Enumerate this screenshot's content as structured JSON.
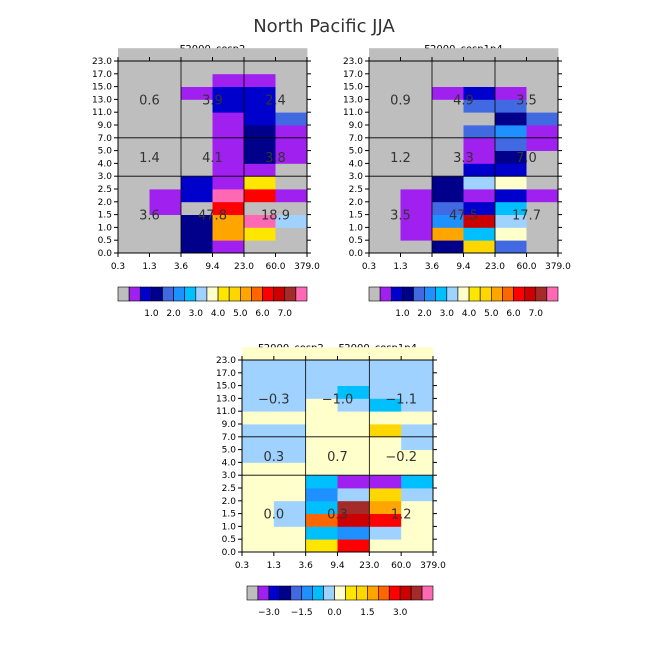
{
  "title": "North Pacific JJA",
  "palette_main": [
    "#bebebe",
    "#a020f0",
    "#0000cd",
    "#00008b",
    "#4169e1",
    "#1e90ff",
    "#00bfff",
    "#a0d2ff",
    "#ffffcc",
    "#ffe600",
    "#ffd700",
    "#ffa500",
    "#ff6600",
    "#ff0000",
    "#cc0000",
    "#a52a2a",
    "#ff69b4"
  ],
  "palette_diff": [
    "#bebebe",
    "#a020f0",
    "#0000cd",
    "#00008b",
    "#4169e1",
    "#1e90ff",
    "#00bfff",
    "#a0d2ff",
    "#ffffcc",
    "#ffe600",
    "#ffd700",
    "#ffa500",
    "#ff6600",
    "#ff0000",
    "#cc0000",
    "#a52a2a",
    "#ff69b4"
  ],
  "chart_data": [
    {
      "type": "heatmap",
      "title": "F2000_cosp2",
      "x_tick_labels": [
        "0.3",
        "1.3",
        "3.6",
        "9.4",
        "23.0",
        "60.0",
        "379.0"
      ],
      "y_tick_labels": [
        "0.0",
        "0.5",
        "1.0",
        "1.5",
        "2.0",
        "2.5",
        "3.0",
        "4.0",
        "5.0",
        "7.0",
        "9.0",
        "11.0",
        "13.0",
        "15.0",
        "17.0",
        "23.0"
      ],
      "rows": [
        [
          0,
          0,
          3,
          1,
          0,
          0
        ],
        [
          0,
          0,
          3,
          11,
          9,
          0
        ],
        [
          0,
          0,
          3,
          11,
          16,
          7
        ],
        [
          0,
          1,
          0,
          13,
          0,
          0
        ],
        [
          0,
          1,
          2,
          16,
          13,
          1
        ],
        [
          0,
          0,
          2,
          1,
          9,
          0
        ],
        [
          0,
          0,
          0,
          1,
          1,
          0
        ],
        [
          0,
          0,
          0,
          1,
          3,
          1
        ],
        [
          0,
          0,
          0,
          1,
          3,
          1
        ],
        [
          0,
          0,
          0,
          1,
          3,
          1
        ],
        [
          0,
          0,
          0,
          1,
          2,
          4
        ],
        [
          0,
          0,
          0,
          2,
          2,
          0
        ],
        [
          0,
          0,
          1,
          2,
          2,
          0
        ],
        [
          0,
          0,
          0,
          1,
          1,
          0
        ],
        [
          0,
          0,
          0,
          0,
          0,
          0
        ],
        [
          0,
          0,
          0,
          0,
          0,
          0
        ]
      ],
      "box_labels": [
        {
          "col": 0,
          "row": 0,
          "text": "3.6"
        },
        {
          "col": 1,
          "row": 0,
          "text": "47.8"
        },
        {
          "col": 2,
          "row": 0,
          "text": "18.9"
        },
        {
          "col": 0,
          "row": 1,
          "text": "1.4"
        },
        {
          "col": 1,
          "row": 1,
          "text": "4.1"
        },
        {
          "col": 2,
          "row": 1,
          "text": "3.8"
        },
        {
          "col": 0,
          "row": 2,
          "text": "0.6"
        },
        {
          "col": 1,
          "row": 2,
          "text": "3.9"
        },
        {
          "col": 2,
          "row": 2,
          "text": "2.4"
        }
      ],
      "colorbar_labels": [
        "1.0",
        "2.0",
        "3.0",
        "4.0",
        "5.0",
        "6.0",
        "7.0"
      ]
    },
    {
      "type": "heatmap",
      "title": "F2000_cosp1p4",
      "x_tick_labels": [
        "0.3",
        "1.3",
        "3.6",
        "9.4",
        "23.0",
        "60.0",
        "379.0"
      ],
      "y_tick_labels": [
        "0.0",
        "0.5",
        "1.0",
        "1.5",
        "2.0",
        "2.5",
        "3.0",
        "4.0",
        "5.0",
        "7.0",
        "9.0",
        "11.0",
        "13.0",
        "15.0",
        "17.0",
        "23.0"
      ],
      "rows": [
        [
          0,
          0,
          3,
          10,
          4,
          0
        ],
        [
          0,
          1,
          11,
          6,
          8,
          0
        ],
        [
          0,
          1,
          5,
          14,
          7,
          0
        ],
        [
          0,
          1,
          4,
          2,
          6,
          0
        ],
        [
          0,
          1,
          3,
          1,
          2,
          1
        ],
        [
          0,
          0,
          3,
          7,
          8,
          0
        ],
        [
          0,
          0,
          0,
          2,
          2,
          0
        ],
        [
          0,
          0,
          0,
          1,
          3,
          0
        ],
        [
          0,
          0,
          0,
          1,
          4,
          1
        ],
        [
          0,
          0,
          0,
          4,
          5,
          1
        ],
        [
          0,
          0,
          0,
          0,
          3,
          4
        ],
        [
          0,
          0,
          0,
          4,
          4,
          0
        ],
        [
          0,
          0,
          1,
          2,
          1,
          0
        ],
        [
          0,
          0,
          0,
          0,
          0,
          0
        ],
        [
          0,
          0,
          0,
          0,
          0,
          0
        ],
        [
          0,
          0,
          0,
          0,
          0,
          0
        ]
      ],
      "box_labels": [
        {
          "col": 0,
          "row": 0,
          "text": "3.5"
        },
        {
          "col": 1,
          "row": 0,
          "text": "47.5"
        },
        {
          "col": 2,
          "row": 0,
          "text": "17.7"
        },
        {
          "col": 0,
          "row": 1,
          "text": "1.2"
        },
        {
          "col": 1,
          "row": 1,
          "text": "3.3"
        },
        {
          "col": 2,
          "row": 1,
          "text": "7.0"
        },
        {
          "col": 0,
          "row": 2,
          "text": "0.9"
        },
        {
          "col": 1,
          "row": 2,
          "text": "4.9"
        },
        {
          "col": 2,
          "row": 2,
          "text": "3.5"
        }
      ],
      "colorbar_labels": [
        "1.0",
        "2.0",
        "3.0",
        "4.0",
        "5.0",
        "6.0",
        "7.0"
      ]
    },
    {
      "type": "heatmap",
      "title": "F2000_cosp2 − F2000_cosp1p4",
      "x_tick_labels": [
        "0.3",
        "1.3",
        "3.6",
        "9.4",
        "23.0",
        "60.0",
        "379.0"
      ],
      "y_tick_labels": [
        "0.0",
        "0.5",
        "1.0",
        "1.5",
        "2.0",
        "2.5",
        "3.0",
        "4.0",
        "5.0",
        "7.0",
        "9.0",
        "11.0",
        "13.0",
        "15.0",
        "17.0",
        "23.0"
      ],
      "rows": [
        [
          8,
          8,
          9,
          13,
          8,
          8
        ],
        [
          8,
          8,
          6,
          5,
          7,
          8
        ],
        [
          8,
          7,
          12,
          14,
          13,
          8
        ],
        [
          8,
          7,
          6,
          15,
          11,
          8
        ],
        [
          8,
          8,
          5,
          7,
          10,
          7
        ],
        [
          8,
          8,
          6,
          1,
          1,
          6
        ],
        [
          8,
          8,
          8,
          8,
          8,
          8
        ],
        [
          7,
          7,
          8,
          8,
          8,
          8
        ],
        [
          7,
          7,
          8,
          8,
          8,
          7
        ],
        [
          7,
          7,
          8,
          8,
          10,
          7
        ],
        [
          8,
          8,
          8,
          8,
          8,
          8
        ],
        [
          7,
          7,
          8,
          7,
          6,
          7
        ],
        [
          7,
          7,
          7,
          6,
          7,
          7
        ],
        [
          7,
          7,
          7,
          7,
          7,
          7
        ],
        [
          7,
          7,
          7,
          7,
          7,
          7
        ],
        [
          8,
          8,
          8,
          8,
          8,
          8
        ]
      ],
      "box_labels": [
        {
          "col": 0,
          "row": 0,
          "text": "0.0"
        },
        {
          "col": 1,
          "row": 0,
          "text": "0.3"
        },
        {
          "col": 2,
          "row": 0,
          "text": "1.2"
        },
        {
          "col": 0,
          "row": 1,
          "text": "0.3"
        },
        {
          "col": 1,
          "row": 1,
          "text": "0.7"
        },
        {
          "col": 2,
          "row": 1,
          "text": "−0.2"
        },
        {
          "col": 0,
          "row": 2,
          "text": "−0.3"
        },
        {
          "col": 1,
          "row": 2,
          "text": "−1.0"
        },
        {
          "col": 2,
          "row": 2,
          "text": "−1.1"
        }
      ],
      "colorbar_labels": [
        "−3.0",
        "−1.5",
        "0.0",
        "1.5",
        "3.0"
      ]
    }
  ]
}
